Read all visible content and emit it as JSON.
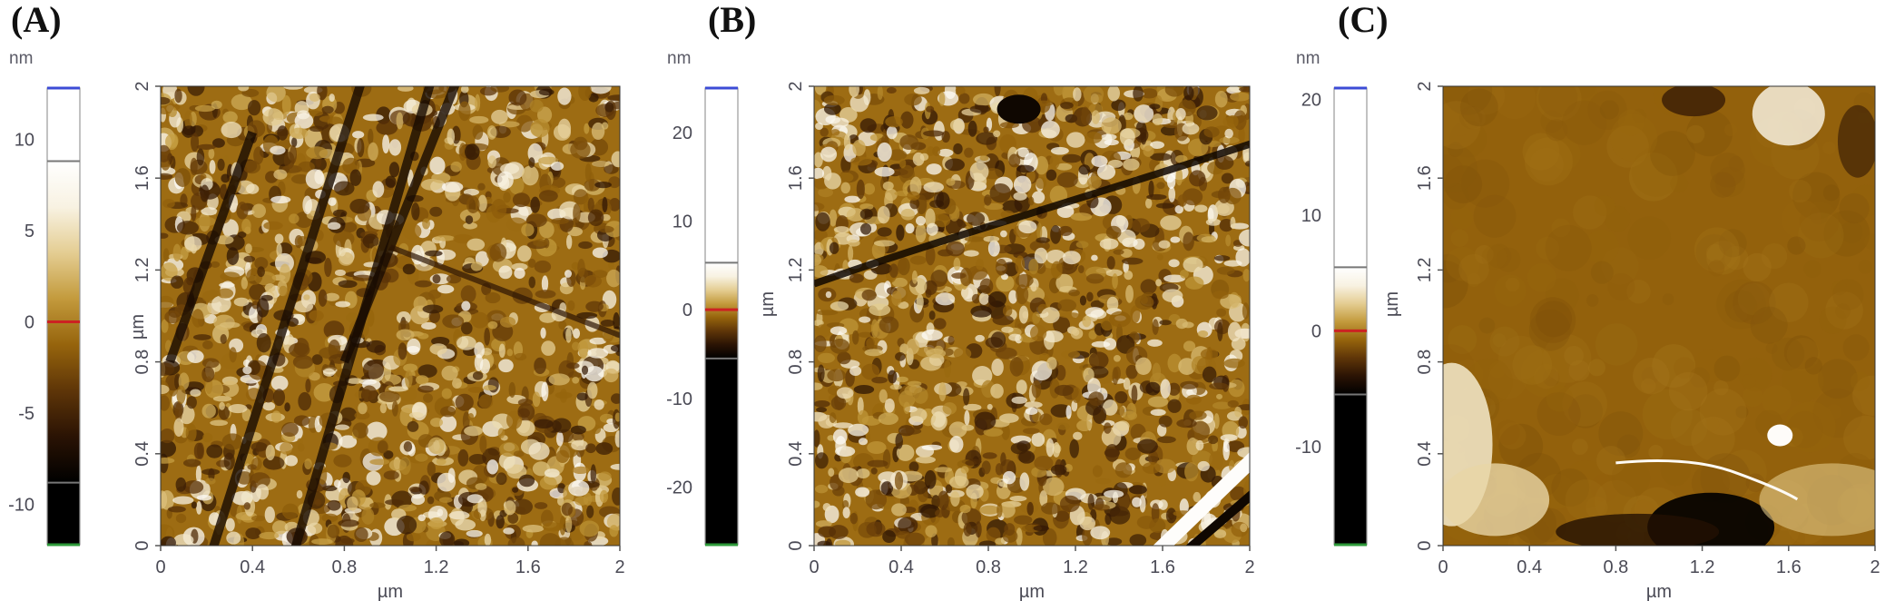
{
  "figure": {
    "panels": [
      {
        "label": "(A)",
        "colorbar": {
          "unit": "nm",
          "ticks": [
            "10",
            "5",
            "0",
            "-5",
            "-10"
          ],
          "tick_values": [
            10,
            5,
            0,
            -5,
            -10
          ],
          "range": [
            -12.2,
            12.8
          ],
          "data_range": [
            -8.8,
            8.8
          ],
          "zero_value": 0
        },
        "image": {
          "y_label": "µm",
          "x_label": "µm",
          "y_ticks": [
            "0",
            "0.4",
            "0.8",
            "1.2",
            "1.6",
            "2"
          ],
          "x_ticks": [
            "0",
            "0.4",
            "0.8",
            "1.2",
            "1.6",
            "2"
          ],
          "texture": "grains-with-diagonal-scratches",
          "seed": 11
        }
      },
      {
        "label": "(B)",
        "colorbar": {
          "unit": "nm",
          "ticks": [
            "20",
            "10",
            "0",
            "-10",
            "-20"
          ],
          "tick_values": [
            20,
            10,
            0,
            -10,
            -20
          ],
          "range": [
            -26.5,
            25
          ],
          "data_range": [
            -5.5,
            5.3
          ],
          "zero_value": 0
        },
        "image": {
          "y_label": "µm",
          "x_label": "µm",
          "y_ticks": [
            "0",
            "0.4",
            "0.8",
            "1.2",
            "1.6",
            "2"
          ],
          "x_ticks": [
            "0",
            "0.4",
            "0.8",
            "1.2",
            "1.6",
            "2"
          ],
          "texture": "grains-with-crack",
          "seed": 23
        }
      },
      {
        "label": "(C)",
        "colorbar": {
          "unit": "nm",
          "ticks": [
            "20",
            "10",
            "0",
            "-10"
          ],
          "tick_values": [
            20,
            10,
            0,
            -10
          ],
          "range": [
            -18.5,
            21
          ],
          "data_range": [
            -5.5,
            5.5
          ],
          "zero_value": 0
        },
        "image": {
          "y_label": "µm",
          "x_label": "µm",
          "y_ticks": [
            "0",
            "0.4",
            "0.8",
            "1.2",
            "1.6",
            "2"
          ],
          "x_ticks": [
            "0",
            "0.4",
            "0.8",
            "1.2",
            "1.6",
            "2"
          ],
          "texture": "smooth-film-with-bright-deposits",
          "seed": 37
        }
      }
    ]
  },
  "colors": {
    "colormap": [
      "#000000",
      "#2a1304",
      "#5e3508",
      "#96640c",
      "#c39a3c",
      "#e4cd92",
      "#f8f2e2",
      "#ffffff"
    ],
    "scale_max_marker": "#3c4bd6",
    "scale_zero_marker": "#cc2222",
    "scale_min_marker": "#2e9a3a",
    "scale_limit_line": "#777777",
    "text": "#4a4a55"
  }
}
